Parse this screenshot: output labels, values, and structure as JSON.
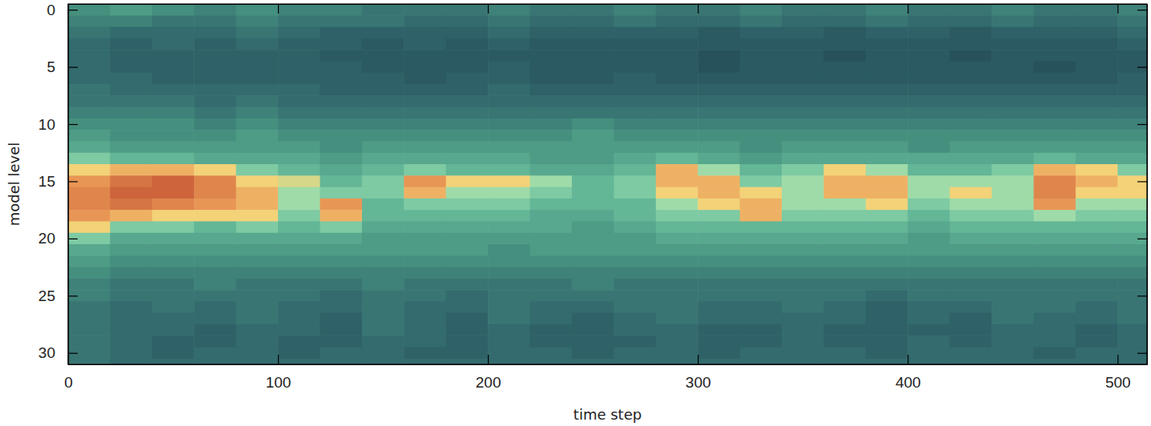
{
  "chart_data": {
    "type": "heatmap",
    "x_label": "time step",
    "y_label": "model level",
    "x": [
      10,
      30,
      50,
      70,
      90,
      110,
      130,
      150,
      170,
      190,
      210,
      230,
      250,
      270,
      290,
      310,
      330,
      350,
      370,
      390,
      410,
      430,
      450,
      470,
      490,
      510
    ],
    "y": [
      0,
      1,
      2,
      3,
      4,
      5,
      6,
      7,
      8,
      9,
      10,
      11,
      12,
      13,
      14,
      15,
      16,
      17,
      18,
      19,
      20,
      21,
      22,
      23,
      24,
      25,
      26,
      27,
      28,
      29,
      30,
      31
    ],
    "values": [
      [
        4,
        4.5,
        4,
        3.5,
        4,
        3.5,
        3.5,
        3,
        3,
        3,
        3.5,
        3,
        3,
        3.5,
        3,
        3,
        3.5,
        3,
        3,
        3.5,
        3,
        3,
        3.5,
        3,
        3,
        3.5
      ],
      [
        3.5,
        3.5,
        3,
        3,
        3.5,
        3,
        3,
        3,
        2.5,
        2.5,
        3,
        2.5,
        2.5,
        3,
        2.5,
        2.5,
        3,
        2.5,
        2.5,
        3,
        2.5,
        2.5,
        3,
        2.5,
        2.5,
        3
      ],
      [
        3,
        2.5,
        2.5,
        2.5,
        3,
        2.5,
        2,
        2,
        2,
        2,
        2.5,
        2,
        2,
        2,
        2,
        1.5,
        2,
        2,
        1.5,
        2,
        2,
        1.5,
        2,
        2,
        2,
        2.5
      ],
      [
        2.5,
        2,
        2.5,
        2,
        2.5,
        2,
        2,
        1.5,
        2,
        1.5,
        2,
        1.5,
        1.5,
        1.5,
        1.5,
        1.5,
        1.5,
        1.5,
        1.5,
        1.5,
        1.5,
        1.5,
        1.5,
        1.5,
        1.5,
        2
      ],
      [
        2.5,
        2,
        2,
        2,
        2,
        2,
        1.5,
        1.5,
        1.5,
        1.5,
        1.5,
        1.5,
        1.5,
        1.5,
        1.5,
        1,
        1.5,
        1.5,
        1,
        1.5,
        1.5,
        1,
        1.5,
        1.5,
        1.5,
        1.5
      ],
      [
        2.5,
        2,
        2,
        2,
        2,
        2,
        2,
        1.5,
        1.5,
        1.5,
        2,
        1.5,
        1.5,
        1.5,
        1.5,
        1,
        1.5,
        1.5,
        1.5,
        1.5,
        1.5,
        1.5,
        1.5,
        1,
        1.5,
        1.5
      ],
      [
        2.5,
        2.5,
        2,
        2,
        2,
        2,
        2,
        2,
        1.5,
        2,
        2,
        1.5,
        1.5,
        2,
        1.5,
        1.5,
        1.5,
        1.5,
        1.5,
        1.5,
        1.5,
        1.5,
        1.5,
        1.5,
        1.5,
        2
      ],
      [
        3,
        2.5,
        2.5,
        2.5,
        2.5,
        2.5,
        2,
        2,
        2,
        2,
        2.5,
        2,
        2,
        2,
        2,
        2,
        2,
        2,
        2,
        2,
        2,
        2,
        2,
        2,
        2,
        2
      ],
      [
        3,
        3,
        3,
        2.5,
        3,
        2.5,
        2.5,
        2.5,
        2.5,
        2.5,
        2.5,
        2.5,
        2.5,
        2.5,
        2.5,
        2.5,
        2.5,
        2.5,
        2.5,
        2.5,
        2.5,
        2.5,
        2.5,
        2.5,
        2.5,
        2.5
      ],
      [
        3.5,
        3.5,
        3.5,
        3,
        3.5,
        3,
        3,
        3,
        3,
        3,
        3,
        3,
        3,
        3,
        3,
        3,
        3,
        3,
        3,
        3,
        3,
        3,
        3,
        3,
        3,
        3
      ],
      [
        4,
        4,
        4,
        3.5,
        4,
        3.5,
        3.5,
        3.5,
        3.5,
        3.5,
        3.5,
        3.5,
        4,
        3.5,
        3.5,
        3.5,
        3.5,
        3.5,
        3.5,
        3.5,
        3.5,
        3.5,
        3.5,
        3.5,
        3.5,
        3.5
      ],
      [
        4.5,
        4,
        4,
        4,
        4.5,
        4,
        4,
        4,
        4,
        4,
        4,
        4,
        4.5,
        4,
        4,
        4,
        4,
        4,
        4,
        4,
        4,
        4,
        4,
        4,
        4,
        4
      ],
      [
        5,
        4.5,
        4.5,
        4.5,
        4.5,
        4.5,
        4,
        4.5,
        4.5,
        4.5,
        4.5,
        4.5,
        4.5,
        4.5,
        4.5,
        4.5,
        4,
        4.5,
        4.5,
        4.5,
        4,
        4.5,
        4.5,
        4.5,
        4.5,
        4.5
      ],
      [
        6,
        5.5,
        5.5,
        5,
        5,
        5,
        4.5,
        5,
        5,
        5,
        5,
        4.5,
        4.5,
        5,
        5.5,
        5,
        4.5,
        5,
        5,
        5,
        5,
        5,
        5,
        5.5,
        5,
        5
      ],
      [
        7,
        7.5,
        7.5,
        7,
        6,
        5.5,
        5,
        5.5,
        6,
        5.5,
        5.5,
        5,
        5,
        5.5,
        7.5,
        6.5,
        5.5,
        6,
        7,
        6.5,
        5.5,
        5.5,
        6,
        7.5,
        7,
        6
      ],
      [
        8,
        9,
        9.5,
        8.5,
        7,
        6.8,
        5.5,
        6,
        8,
        7,
        7,
        6.5,
        5.5,
        6,
        7.5,
        7.5,
        6,
        6.5,
        7.5,
        7.5,
        6.5,
        6.5,
        6.5,
        8.5,
        7.5,
        7
      ],
      [
        8.5,
        9.5,
        9.5,
        8.5,
        7.5,
        6.5,
        6,
        6,
        7.5,
        6.5,
        6.5,
        6,
        5.5,
        6,
        7,
        7.5,
        7,
        6.5,
        7.5,
        7.5,
        6.5,
        7,
        6.5,
        8.5,
        7,
        7
      ],
      [
        8.5,
        9,
        8.5,
        8,
        7.5,
        6.5,
        8,
        5.5,
        6,
        6,
        6,
        5.5,
        5.5,
        5.5,
        6.5,
        7,
        7.5,
        6.5,
        6.5,
        7,
        6,
        6.5,
        6.5,
        8,
        6.5,
        6.5
      ],
      [
        8,
        7.5,
        7,
        7,
        7,
        6,
        7.5,
        5.5,
        5.5,
        5.5,
        5.5,
        5,
        5,
        5.5,
        6,
        6,
        7.5,
        6,
        6,
        6,
        5.5,
        6,
        6,
        6.5,
        6,
        6
      ],
      [
        7,
        6,
        6,
        5.5,
        6,
        5.5,
        6,
        5,
        5,
        5,
        5,
        5,
        4.5,
        5,
        5.5,
        5.5,
        5.5,
        5.5,
        5.5,
        5.5,
        5,
        5.5,
        5.5,
        5.5,
        5.5,
        5.5
      ],
      [
        6,
        5,
        5,
        5,
        5,
        5,
        5,
        4.5,
        4.5,
        4.5,
        4.5,
        4.5,
        4.5,
        4.5,
        5,
        5,
        5,
        5,
        5,
        5,
        4.5,
        5,
        5,
        5,
        5,
        5
      ],
      [
        5,
        4.5,
        4.5,
        4.5,
        4.5,
        4.5,
        4.5,
        4.5,
        4.5,
        4.5,
        4,
        4.5,
        4.5,
        4.5,
        4.5,
        4.5,
        4.5,
        4.5,
        4.5,
        4.5,
        4.5,
        4.5,
        4.5,
        4.5,
        4.5,
        4.5
      ],
      [
        4.5,
        4,
        4,
        4,
        4,
        4,
        4,
        4,
        4,
        4,
        4,
        4,
        4,
        4,
        4,
        4,
        4,
        4,
        4,
        4,
        4,
        4,
        4,
        4,
        4,
        4
      ],
      [
        4,
        3.5,
        3.5,
        3.5,
        3.5,
        3.5,
        3.5,
        3.5,
        3.5,
        3.5,
        3.5,
        3.5,
        3.5,
        3.5,
        3.5,
        3.5,
        3.5,
        3.5,
        3.5,
        3.5,
        3.5,
        3.5,
        3.5,
        3.5,
        3.5,
        3.5
      ],
      [
        3.5,
        3,
        3,
        3.5,
        3,
        3,
        3,
        3.5,
        3,
        3,
        3,
        3,
        3.5,
        3,
        3,
        3,
        3,
        3,
        3,
        3,
        3,
        3,
        3,
        3,
        3,
        3
      ],
      [
        3.5,
        3,
        3,
        3,
        3,
        3,
        2.5,
        3,
        3,
        2.5,
        3,
        3,
        3,
        3,
        3,
        3,
        3,
        3,
        3,
        2.5,
        3,
        3,
        3,
        3,
        3,
        3
      ],
      [
        3,
        2.5,
        3,
        2.5,
        3,
        2.5,
        2.5,
        3,
        2.5,
        2.5,
        3,
        2.5,
        2.5,
        3,
        3,
        2.5,
        2.5,
        3,
        2.5,
        2,
        2.5,
        2.5,
        3,
        3,
        2.5,
        3
      ],
      [
        3,
        2.5,
        2.5,
        2.5,
        3,
        2.5,
        2,
        3,
        2.5,
        2,
        3,
        2.5,
        2,
        2.5,
        3,
        2.5,
        2.5,
        2.5,
        2.5,
        2,
        2.5,
        2,
        3,
        2.5,
        2.5,
        3
      ],
      [
        3,
        2.5,
        2.5,
        2,
        2.5,
        2.5,
        2,
        3,
        2.5,
        2,
        2.5,
        2,
        2,
        2.5,
        2.5,
        2,
        2,
        2.5,
        2,
        2,
        2,
        2,
        2.5,
        2.5,
        2,
        2.5
      ],
      [
        3,
        2.5,
        2,
        2,
        2.5,
        2,
        2,
        2.5,
        2.5,
        2,
        2.5,
        2,
        2,
        2,
        2.5,
        2,
        2,
        2.5,
        2,
        2,
        2.5,
        2,
        2.5,
        2.5,
        2,
        2.5
      ],
      [
        3,
        2.5,
        2,
        2.5,
        2.5,
        2,
        2.5,
        2.5,
        2,
        2,
        2.5,
        2.5,
        2,
        2.5,
        2.5,
        2,
        2.5,
        2.5,
        2.5,
        2,
        2.5,
        2.5,
        2.5,
        2,
        2.5,
        2.5
      ],
      [
        3,
        2.5,
        2.5,
        2.5,
        2.5,
        2.5,
        2.5,
        2.5,
        2.5,
        2.5,
        2.5,
        2.5,
        2.5,
        2.5,
        2.5,
        2.5,
        2.5,
        2.5,
        2.5,
        2.5,
        2.5,
        2.5,
        2.5,
        2.5,
        2.5,
        2.5
      ]
    ],
    "xlim": [
      0,
      514
    ],
    "ylim": [
      31,
      -0.5
    ],
    "xticks": [
      0,
      100,
      200,
      300,
      400,
      500
    ],
    "yticks": [
      0,
      5,
      10,
      15,
      20,
      25,
      30
    ]
  }
}
